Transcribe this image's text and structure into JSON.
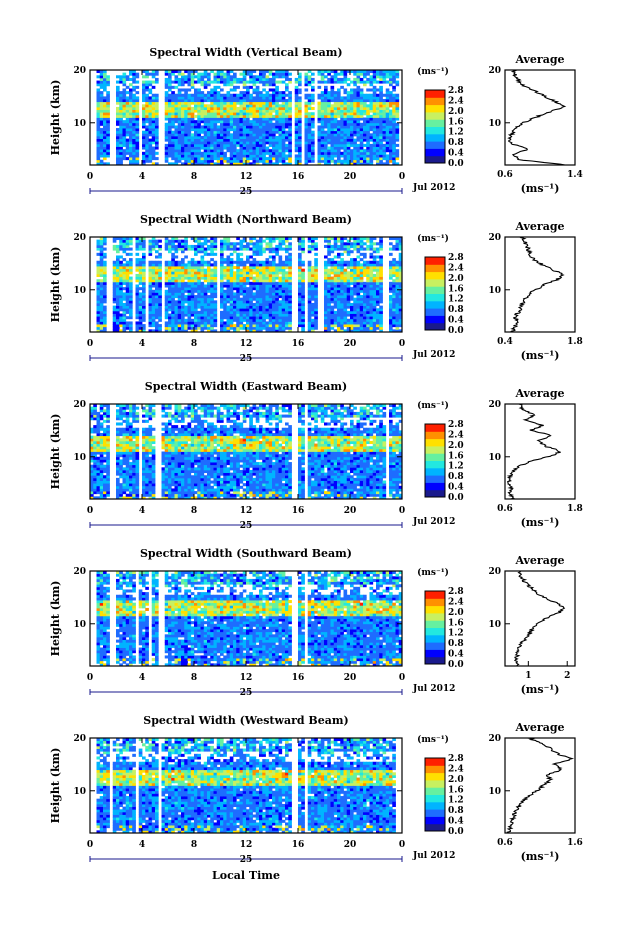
{
  "figure": {
    "xlabel": "Local Time",
    "date_label": "Jul 2012",
    "day_label": "25",
    "colorbar_unit": "(ms⁻¹)",
    "avg_unit": "(ms⁻¹)",
    "avg_title": "Average",
    "ylabel": "Height (km)",
    "colormap": [
      "#1a1a8c",
      "#0000ff",
      "#1e6cff",
      "#00b4ff",
      "#22e8e0",
      "#66f0a0",
      "#c8f060",
      "#ffe000",
      "#ff9000",
      "#ff2000",
      "#c00000"
    ]
  },
  "chart_data": [
    {
      "type": "heatmap",
      "title": "Spectral Width (Vertical Beam)",
      "x_ticks": [
        "0",
        "4",
        "8",
        "12",
        "16",
        "20",
        "0"
      ],
      "x_range": [
        0,
        24
      ],
      "y_ticks": [
        "10",
        "20"
      ],
      "y_range": [
        2,
        20
      ],
      "colorbar_ticks": [
        "0.0",
        "0.4",
        "0.8",
        "1.2",
        "1.6",
        "2.0",
        "2.4",
        "2.8"
      ],
      "colorbar_range": [
        0,
        2.8
      ],
      "gaps": [
        [
          0.0,
          0.6
        ],
        [
          1.4,
          2.0
        ],
        [
          3.8,
          4.1
        ],
        [
          5.3,
          5.7
        ],
        [
          15.5,
          15.8
        ],
        [
          16.2,
          16.5
        ],
        [
          17.2,
          17.5
        ],
        [
          23.7,
          24.0
        ]
      ],
      "average": {
        "x_ticks": [
          "0.6",
          "1.4"
        ],
        "x_range": [
          0.6,
          1.4
        ],
        "heights": [
          2,
          3,
          4,
          5,
          6,
          7,
          8,
          9,
          10,
          11,
          12,
          13,
          14,
          15,
          16,
          17,
          18,
          19,
          20
        ],
        "values": [
          1.3,
          0.75,
          0.7,
          0.85,
          0.68,
          0.65,
          0.68,
          0.72,
          0.8,
          0.95,
          1.1,
          1.28,
          1.18,
          1.05,
          0.95,
          0.82,
          0.75,
          0.72,
          0.7
        ]
      }
    },
    {
      "type": "heatmap",
      "title": "Spectral Width (Northward Beam)",
      "x_ticks": [
        "0",
        "4",
        "8",
        "12",
        "16",
        "20",
        "0"
      ],
      "x_range": [
        0,
        24
      ],
      "y_ticks": [
        "10",
        "20"
      ],
      "y_range": [
        2,
        20
      ],
      "colorbar_ticks": [
        "0.0",
        "0.4",
        "0.8",
        "1.2",
        "1.6",
        "2.0",
        "2.4",
        "2.8"
      ],
      "colorbar_range": [
        0,
        2.8
      ],
      "gaps": [
        [
          0.0,
          0.5
        ],
        [
          1.3,
          1.8
        ],
        [
          3.2,
          3.5
        ],
        [
          4.3,
          4.6
        ],
        [
          5.4,
          5.8
        ],
        [
          9.7,
          10.0
        ],
        [
          15.5,
          15.9
        ],
        [
          16.4,
          16.7
        ],
        [
          17.6,
          17.9
        ],
        [
          22.6,
          22.9
        ]
      ],
      "average": {
        "x_ticks": [
          "0.4",
          "1.8"
        ],
        "x_range": [
          0.4,
          1.8
        ],
        "heights": [
          2,
          3,
          4,
          5,
          6,
          7,
          8,
          9,
          10,
          11,
          12,
          13,
          14,
          15,
          16,
          17,
          18,
          19,
          20
        ],
        "values": [
          0.55,
          0.6,
          0.65,
          0.6,
          0.7,
          0.72,
          0.78,
          0.85,
          1.0,
          1.2,
          1.45,
          1.55,
          1.3,
          1.1,
          0.95,
          0.9,
          0.85,
          0.8,
          0.75
        ]
      }
    },
    {
      "type": "heatmap",
      "title": "Spectral Width (Eastward Beam)",
      "x_ticks": [
        "0",
        "4",
        "8",
        "12",
        "16",
        "20",
        "0"
      ],
      "x_range": [
        0,
        24
      ],
      "y_ticks": [
        "10",
        "20"
      ],
      "y_range": [
        2,
        20
      ],
      "colorbar_ticks": [
        "0.0",
        "0.4",
        "0.8",
        "1.2",
        "1.6",
        "2.0",
        "2.4",
        "2.8"
      ],
      "colorbar_range": [
        0,
        2.8
      ],
      "gaps": [
        [
          1.4,
          1.9
        ],
        [
          3.8,
          4.1
        ],
        [
          5.1,
          5.4
        ],
        [
          15.6,
          16.0
        ],
        [
          16.5,
          16.8
        ],
        [
          22.8,
          23.1
        ]
      ],
      "average": {
        "x_ticks": [
          "0.6",
          "1.8"
        ],
        "x_range": [
          0.6,
          1.8
        ],
        "heights": [
          2,
          3,
          4,
          5,
          6,
          7,
          8,
          9,
          10,
          11,
          12,
          13,
          14,
          15,
          16,
          17,
          18,
          19,
          20
        ],
        "values": [
          0.72,
          0.68,
          0.7,
          0.66,
          0.68,
          0.72,
          0.8,
          1.0,
          1.35,
          1.55,
          1.3,
          1.15,
          1.4,
          1.05,
          1.25,
          0.95,
          1.1,
          0.9,
          0.85
        ]
      }
    },
    {
      "type": "heatmap",
      "title": "Spectral Width (Southward Beam)",
      "x_ticks": [
        "0",
        "4",
        "8",
        "12",
        "16",
        "20",
        "0"
      ],
      "x_range": [
        0,
        24
      ],
      "y_ticks": [
        "10",
        "20"
      ],
      "y_range": [
        2,
        20
      ],
      "colorbar_ticks": [
        "0.0",
        "0.4",
        "0.8",
        "1.2",
        "1.6",
        "2.0",
        "2.4",
        "2.8"
      ],
      "colorbar_range": [
        0,
        2.8
      ],
      "gaps": [
        [
          0.0,
          0.5
        ],
        [
          1.5,
          1.9
        ],
        [
          3.4,
          3.7
        ],
        [
          4.4,
          4.7
        ],
        [
          5.3,
          5.7
        ],
        [
          15.6,
          15.9
        ],
        [
          16.4,
          16.7
        ]
      ],
      "average": {
        "x_ticks": [
          "1",
          "2"
        ],
        "x_range": [
          0.4,
          2.2
        ],
        "heights": [
          2,
          3,
          4,
          5,
          6,
          7,
          8,
          9,
          10,
          11,
          12,
          13,
          14,
          15,
          16,
          17,
          18,
          19,
          20
        ],
        "values": [
          0.7,
          0.68,
          0.72,
          0.75,
          0.8,
          0.9,
          1.0,
          1.1,
          1.25,
          1.45,
          1.75,
          1.95,
          1.7,
          1.4,
          1.2,
          1.05,
          0.9,
          0.8,
          0.75
        ]
      }
    },
    {
      "type": "heatmap",
      "title": "Spectral Width (Westward Beam)",
      "x_ticks": [
        "0",
        "4",
        "8",
        "12",
        "16",
        "20",
        "0"
      ],
      "x_range": [
        0,
        24
      ],
      "y_ticks": [
        "10",
        "20"
      ],
      "y_range": [
        2,
        20
      ],
      "colorbar_ticks": [
        "0.0",
        "0.4",
        "0.8",
        "1.2",
        "1.6",
        "2.0",
        "2.4",
        "2.8"
      ],
      "colorbar_range": [
        0,
        2.8
      ],
      "gaps": [
        [
          0.0,
          0.4
        ],
        [
          1.4,
          1.8
        ],
        [
          3.5,
          3.8
        ],
        [
          5.3,
          5.6
        ],
        [
          15.6,
          15.9
        ],
        [
          16.5,
          16.8
        ],
        [
          23.6,
          23.9
        ]
      ],
      "average": {
        "x_ticks": [
          "0.6",
          "1.6"
        ],
        "x_range": [
          0.6,
          1.6
        ],
        "heights": [
          2,
          3,
          4,
          5,
          6,
          7,
          8,
          9,
          10,
          11,
          12,
          13,
          14,
          15,
          16,
          17,
          18,
          19,
          20
        ],
        "values": [
          0.65,
          0.68,
          0.7,
          0.72,
          0.75,
          0.8,
          0.85,
          0.95,
          1.05,
          1.15,
          1.25,
          1.2,
          1.4,
          1.3,
          1.55,
          1.35,
          1.25,
          1.1,
          0.95
        ]
      }
    }
  ]
}
